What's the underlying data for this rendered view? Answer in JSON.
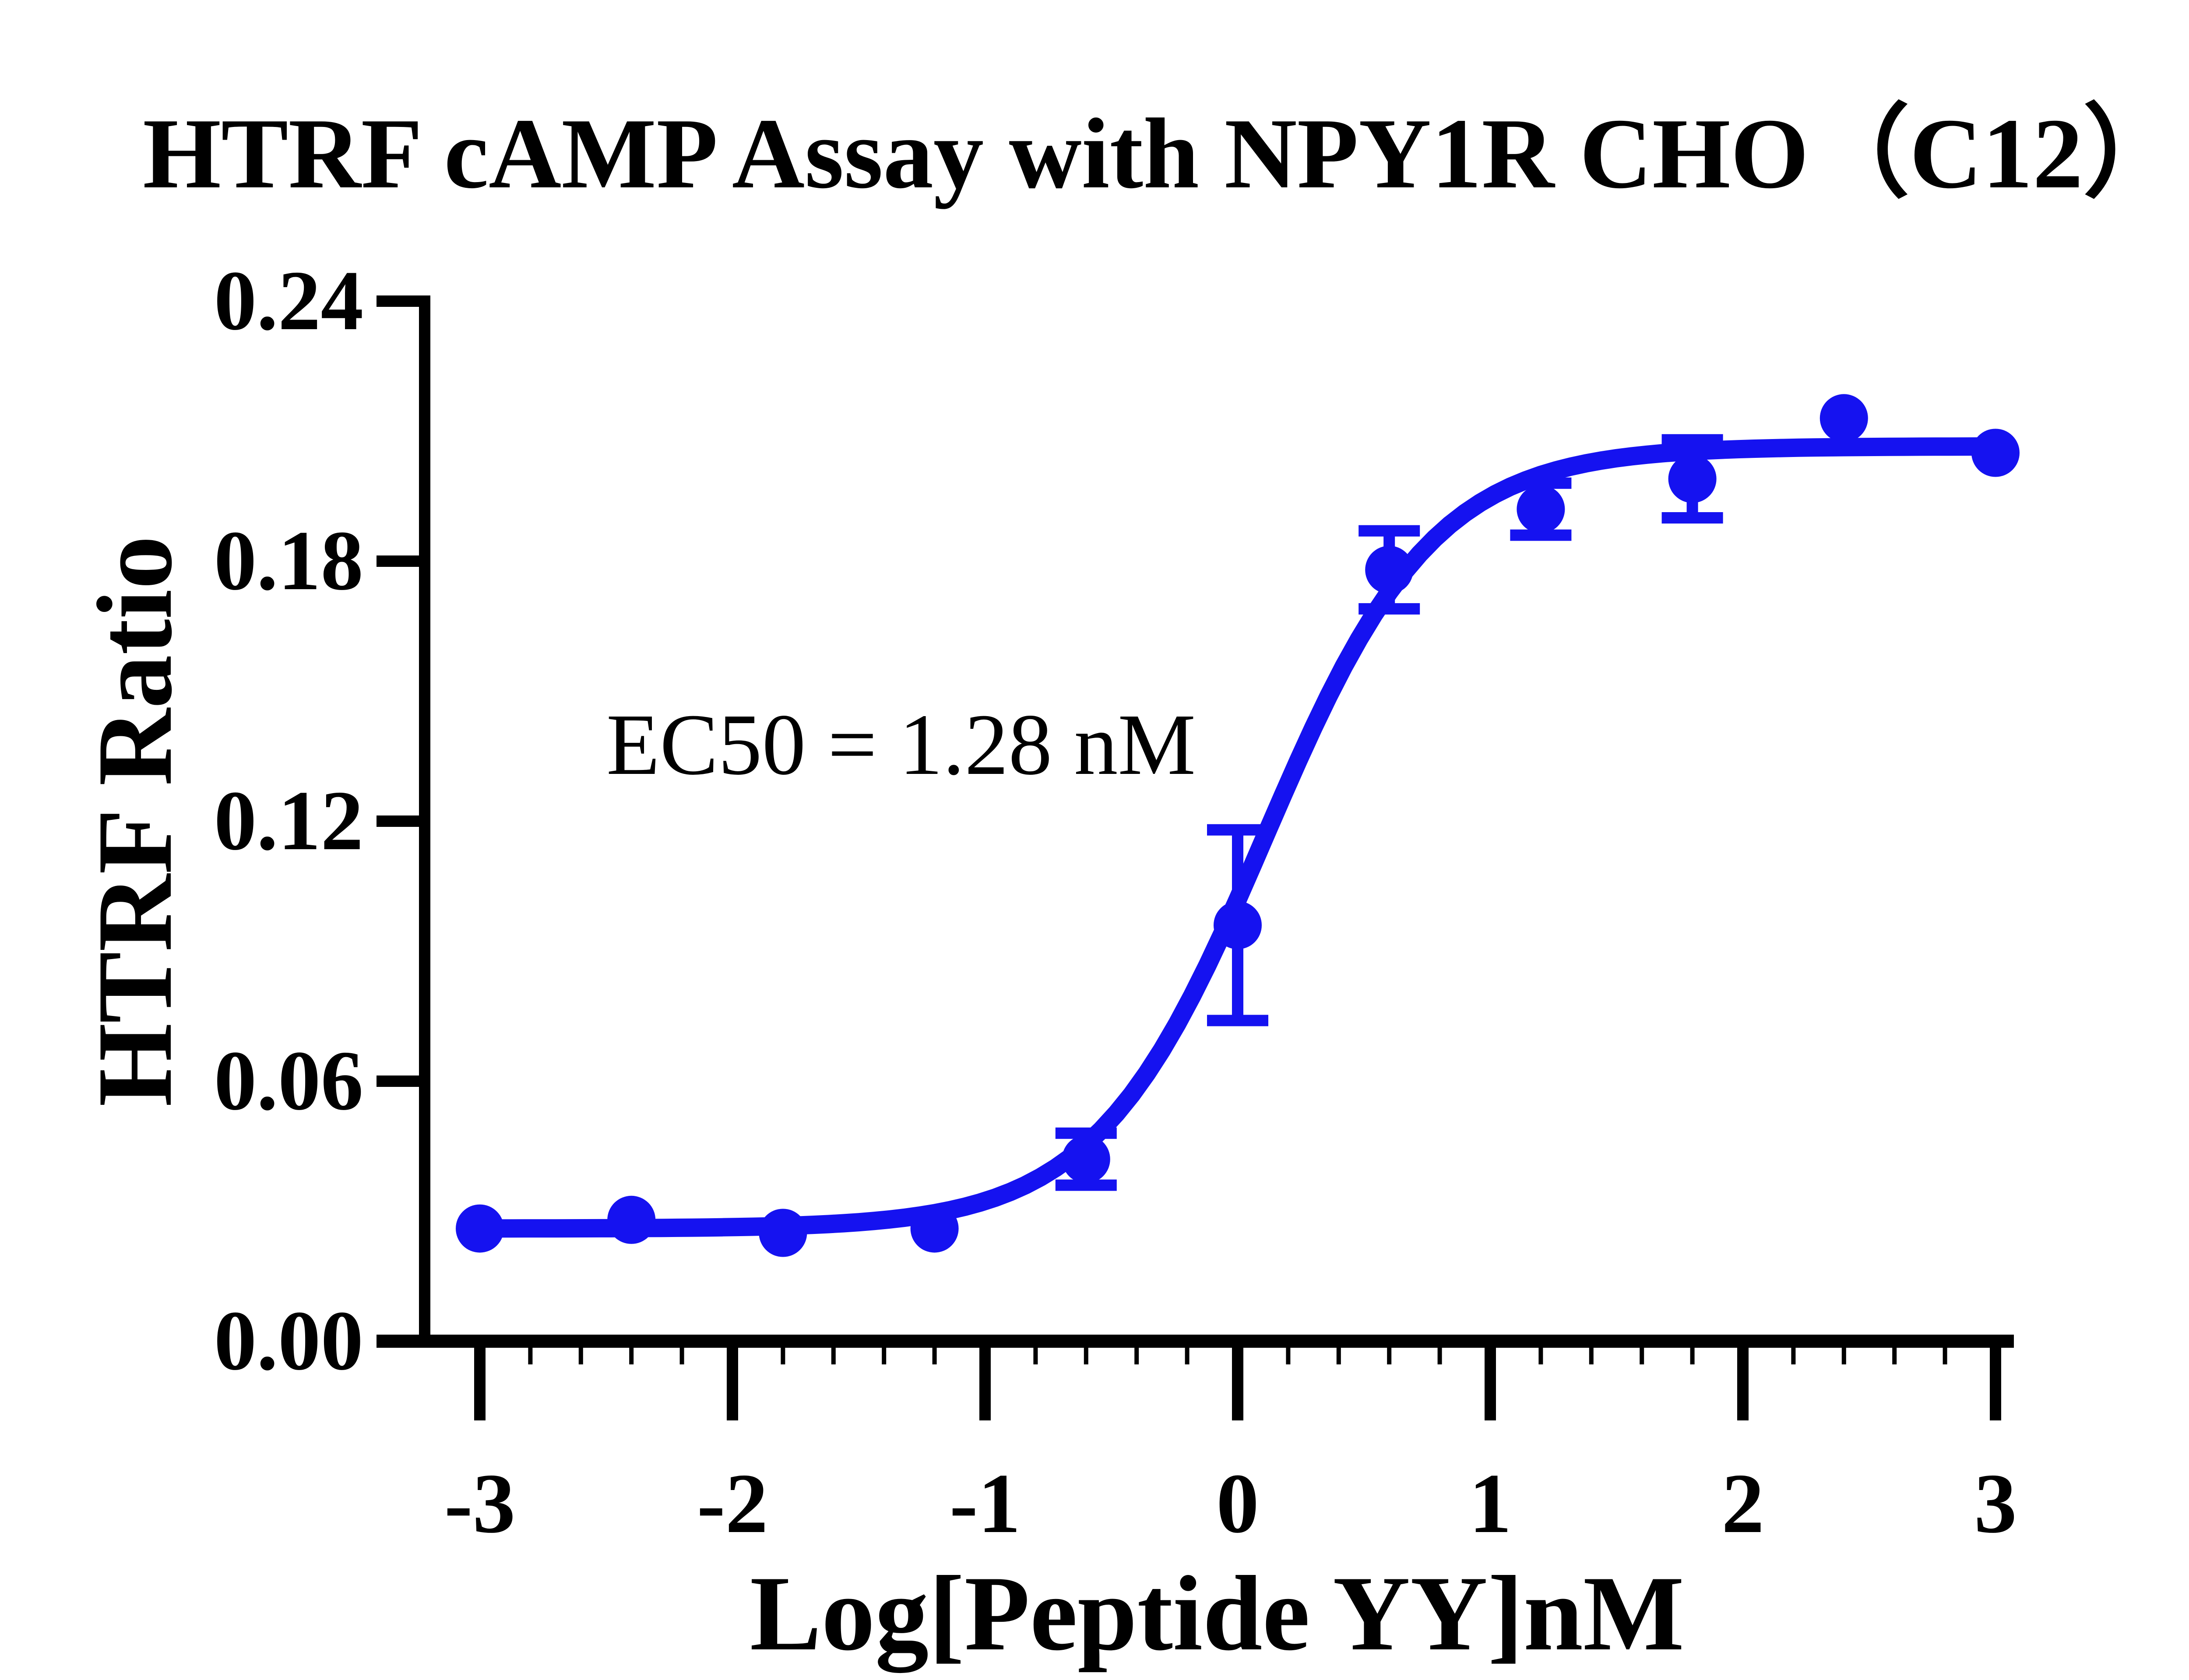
{
  "title": "HTRF cAMP Assay with NPY1R CHO（C12）",
  "annotation": {
    "ec50_label": "EC50 = 1.28 nM"
  },
  "axes": {
    "x": {
      "label": "Log[Peptide YY]nM",
      "min": -3,
      "max": 3,
      "major_tick_step": 1,
      "minor_tick_step": 0.2,
      "tick_values": [
        -3,
        -2,
        -1,
        0,
        1,
        2,
        3
      ],
      "tick_labels": [
        "-3",
        "-2",
        "-1",
        "0",
        "1",
        "2",
        "3"
      ]
    },
    "y": {
      "label": "HTRF Ratio",
      "min": 0,
      "max": 0.24,
      "major_tick_step": 0.06,
      "tick_values": [
        0.0,
        0.06,
        0.12,
        0.18,
        0.24
      ],
      "tick_labels": [
        "0.00",
        "0.06",
        "0.12",
        "0.18",
        "0.24"
      ]
    }
  },
  "chart_data": {
    "type": "scatter",
    "title": "HTRF cAMP Assay with NPY1R CHO（C12）",
    "xlabel": "Log[Peptide YY]nM",
    "ylabel": "HTRF Ratio",
    "xlim": [
      -3,
      3
    ],
    "ylim": [
      0,
      0.24
    ],
    "grid": false,
    "legend": "none",
    "series": [
      {
        "name": "Peptide YY",
        "marker": "circle",
        "color": "#1512f0",
        "x": [
          -3.0,
          -2.4,
          -1.8,
          -1.2,
          -0.6,
          0.0,
          0.6,
          1.2,
          1.8,
          2.4,
          3.0
        ],
        "y": [
          0.026,
          0.028,
          0.025,
          0.026,
          0.042,
          0.096,
          0.178,
          0.192,
          0.199,
          0.213,
          0.205
        ],
        "y_err": [
          0,
          0,
          0,
          0,
          0.006,
          0.022,
          0.009,
          0.006,
          0.009,
          0,
          0
        ],
        "fit": {
          "model": "4PL sigmoid",
          "bottom": 0.026,
          "top": 0.2065,
          "log_ec50": 0.107,
          "hill": 1.3,
          "ec50_nM": 1.28
        }
      }
    ]
  },
  "colors": {
    "curve": "#1512f0",
    "axis": "#000000",
    "text": "#000000",
    "background": "#ffffff"
  }
}
